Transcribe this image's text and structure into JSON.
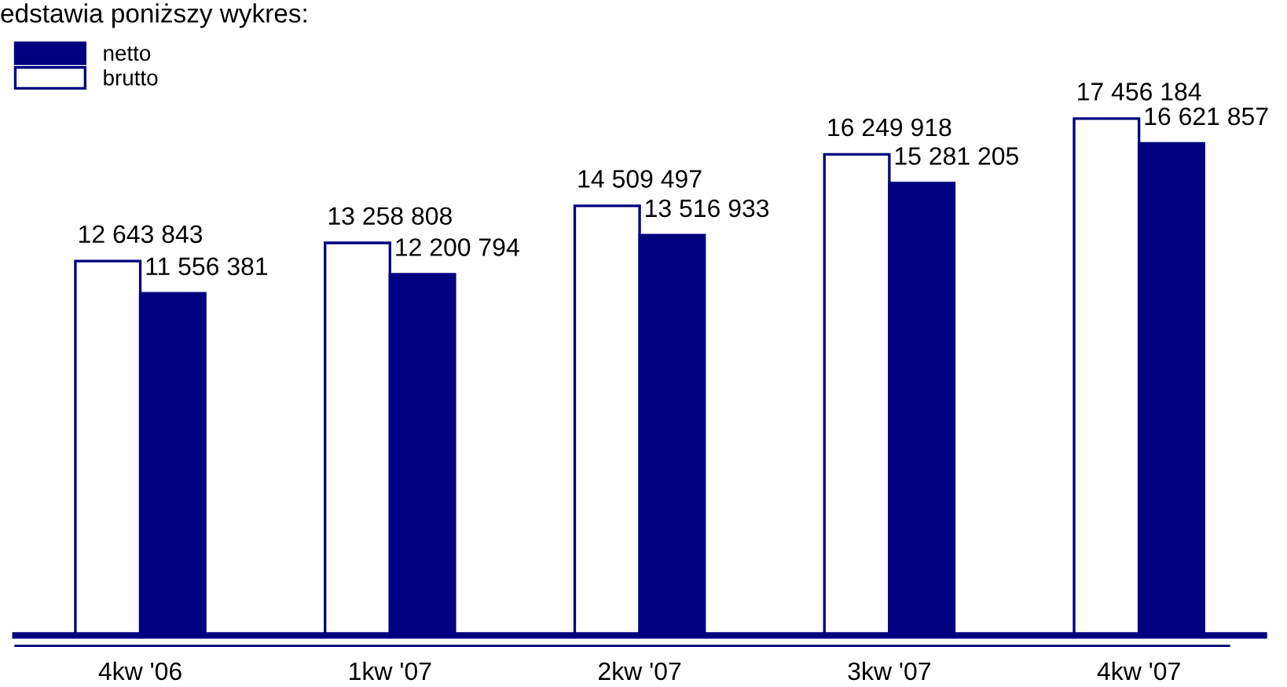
{
  "chart_data": {
    "type": "bar",
    "annotations": [
      "edstawia poniższy wykres:"
    ],
    "categories": [
      "4kw '06",
      "1kw '07",
      "2kw '07",
      "3kw '07",
      "4kw '07"
    ],
    "series": [
      {
        "name": "brutto",
        "color": "#ffffff",
        "values": [
          12643843,
          13258808,
          14509497,
          16249918,
          17456184
        ],
        "value_labels": [
          "12 643 843",
          "13 258 808",
          "14 509 497",
          "16 249 918",
          "17 456 184"
        ]
      },
      {
        "name": "netto",
        "color": "#000080",
        "values": [
          11556381,
          12200794,
          13516933,
          15281205,
          16621857
        ],
        "value_labels": [
          "11 556 381",
          "12 200 794",
          "13 516 933",
          "15 281 205",
          "16 621 857"
        ]
      }
    ],
    "tick_labels": "x",
    "legend": "top left",
    "grid": false
  }
}
